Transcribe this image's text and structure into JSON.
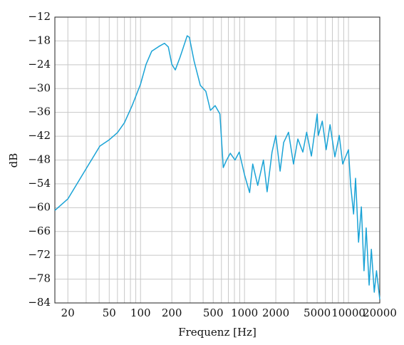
{
  "chart_data": {
    "type": "line",
    "xlabel": "Frequenz [Hz]",
    "ylabel": "dB",
    "color": "#1aa3d6",
    "xscale": "log",
    "grid": true,
    "xlim": [
      15,
      20000
    ],
    "ylim": [
      -84,
      -12
    ],
    "xticks": [
      20,
      50,
      100,
      200,
      500,
      1000,
      2000,
      5000,
      10000,
      20000
    ],
    "xminorticks": [
      30,
      40,
      60,
      70,
      80,
      90,
      300,
      400,
      600,
      700,
      800,
      900,
      3000,
      4000,
      6000,
      7000,
      8000,
      9000
    ],
    "yticks": [
      {
        "value": -84,
        "label": "−84"
      },
      {
        "value": -78,
        "label": "−78"
      },
      {
        "value": -72,
        "label": "−72"
      },
      {
        "value": -66,
        "label": "−66"
      },
      {
        "value": -60,
        "label": "−60"
      },
      {
        "value": -54,
        "label": "−54"
      },
      {
        "value": -48,
        "label": "−48"
      },
      {
        "value": -42,
        "label": "−42"
      },
      {
        "value": -36,
        "label": "−36"
      },
      {
        "value": -30,
        "label": "−30"
      },
      {
        "value": -24,
        "label": "−24"
      },
      {
        "value": -18,
        "label": "−18"
      },
      {
        "value": -12,
        "label": "−12"
      }
    ],
    "x": [
      15,
      20,
      40.6,
      50,
      60,
      70,
      83,
      100,
      113,
      128,
      150,
      170,
      185,
      200,
      216,
      240,
      281,
      295,
      327,
      376,
      425,
      470,
      522,
      580,
      625,
      670,
      730,
      810,
      890,
      1000,
      1120,
      1200,
      1340,
      1520,
      1650,
      1840,
      2000,
      2200,
      2380,
      2650,
      2960,
      3260,
      3640,
      3960,
      4400,
      5000,
      5130,
      5600,
      6100,
      6650,
      7400,
      8150,
      8800,
      10000,
      10500,
      11200,
      11700,
      12500,
      13300,
      14100,
      14800,
      15800,
      16600,
      17700,
      18600,
      20000
    ],
    "values": [
      -60.7,
      -57.8,
      -44.5,
      -42.9,
      -41.1,
      -38.6,
      -34.3,
      -28.9,
      -23.9,
      -20.6,
      -19.4,
      -18.6,
      -19.5,
      -23.9,
      -25.3,
      -22.1,
      -16.7,
      -17.1,
      -23,
      -29.2,
      -30.7,
      -35.5,
      -34.3,
      -36.4,
      -49.9,
      -48.1,
      -46.3,
      -48,
      -46,
      -51.7,
      -56.2,
      -49,
      -54.4,
      -48,
      -56,
      -46,
      -41.8,
      -50.8,
      -43.6,
      -41,
      -49,
      -42.7,
      -46,
      -41,
      -47,
      -36.4,
      -41.8,
      -38.2,
      -45.4,
      -39.1,
      -47.2,
      -41.8,
      -49,
      -45.4,
      -54.4,
      -61.6,
      -52.6,
      -68.7,
      -59.8,
      -75.9,
      -65.1,
      -79.5,
      -70.5,
      -81.3,
      -75.9,
      -83.1
    ]
  }
}
